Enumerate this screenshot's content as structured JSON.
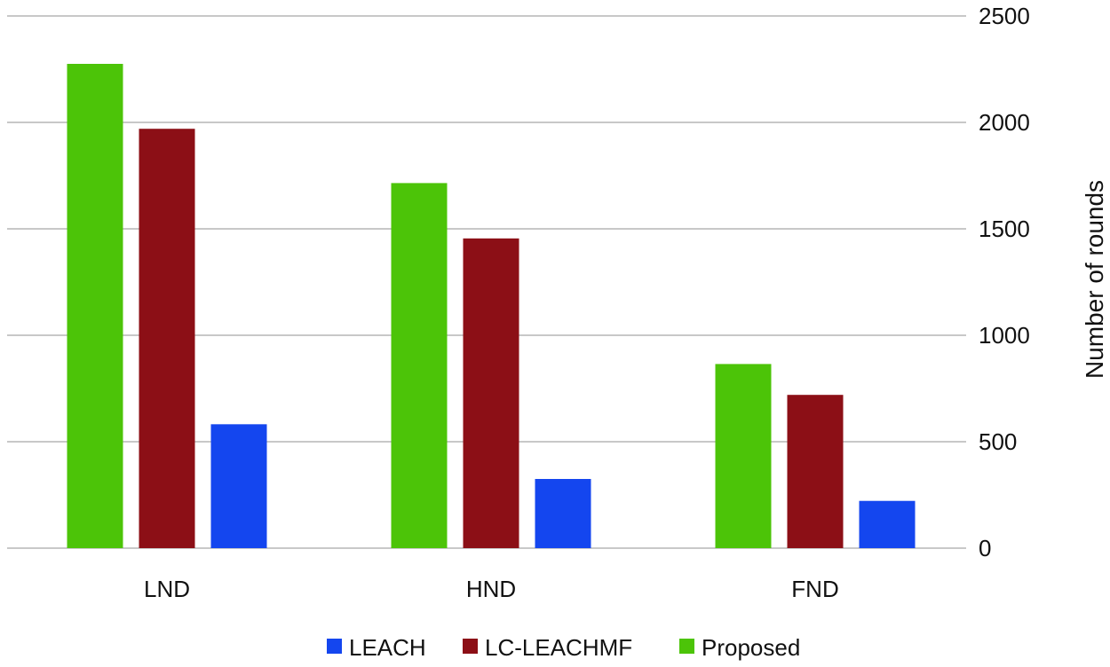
{
  "chart_data": {
    "type": "bar",
    "title": "",
    "xlabel": "",
    "ylabel": "Number of rounds",
    "ylim": [
      0,
      2500
    ],
    "yticks": [
      0,
      500,
      1000,
      1500,
      2000,
      2500
    ],
    "yaxis_position": "right",
    "grid": true,
    "legend_position": "bottom",
    "categories": [
      "LND",
      "HND",
      "FND"
    ],
    "series": [
      {
        "name": "Proposed",
        "color": "#4cc408",
        "values": [
          2275,
          1715,
          865
        ]
      },
      {
        "name": "LC-LEACHMF",
        "color": "#8c0f16",
        "values": [
          1970,
          1455,
          720
        ]
      },
      {
        "name": "LEACH",
        "color": "#1446ef",
        "values": [
          582,
          325,
          222
        ]
      }
    ],
    "legend_order": [
      "LEACH",
      "LC-LEACHMF",
      "Proposed"
    ]
  }
}
